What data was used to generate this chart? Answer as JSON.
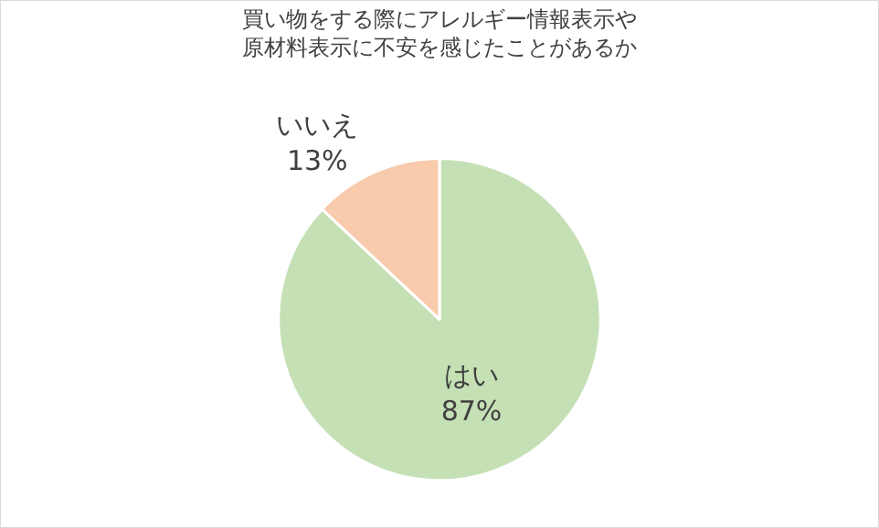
{
  "chart_data": {
    "type": "pie",
    "title": "買い物をする際にアレルギー情報表示や原材料表示に不安を感じたことがあるか",
    "categories": [
      "はい",
      "いいえ"
    ],
    "values": [
      87,
      13
    ],
    "colors": [
      "#c5e0b4",
      "#f8cbad"
    ],
    "value_labels": [
      "87%",
      "13%"
    ],
    "legend": false
  }
}
